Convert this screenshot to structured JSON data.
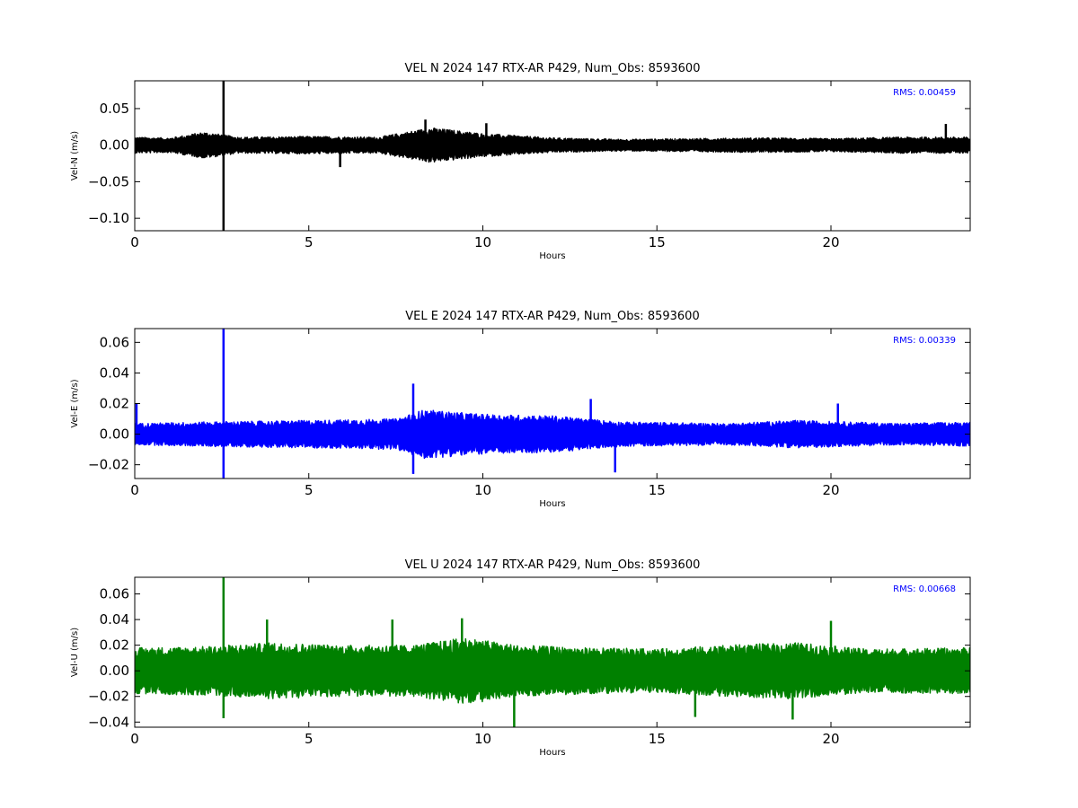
{
  "chart_data": [
    {
      "type": "line",
      "title": "VEL N 2024 147 RTX-AR  P429, Num_Obs: 8593600",
      "xlabel": "Hours",
      "ylabel": "Vel-N (m/s)",
      "xlim": [
        0,
        24
      ],
      "ylim": [
        -0.117,
        0.088
      ],
      "xticks": [
        "0",
        "5",
        "10",
        "15",
        "20"
      ],
      "yticks": [
        "0.05",
        "0.00",
        "−0.05",
        "−0.10"
      ],
      "ytick_values": [
        0.05,
        0.0,
        -0.05,
        -0.1
      ],
      "rms_label": "RMS:  0.00459",
      "rms_color": "#0000ff",
      "series": [
        {
          "color": "#000000",
          "noise_envelope": [
            {
              "x": 0,
              "amp": 0.011
            },
            {
              "x": 1,
              "amp": 0.01
            },
            {
              "x": 2,
              "amp": 0.018
            },
            {
              "x": 3,
              "amp": 0.011
            },
            {
              "x": 5,
              "amp": 0.012
            },
            {
              "x": 7,
              "amp": 0.011
            },
            {
              "x": 8.5,
              "amp": 0.024
            },
            {
              "x": 10,
              "amp": 0.016
            },
            {
              "x": 12,
              "amp": 0.01
            },
            {
              "x": 14,
              "amp": 0.008
            },
            {
              "x": 16,
              "amp": 0.009
            },
            {
              "x": 18,
              "amp": 0.01
            },
            {
              "x": 20,
              "amp": 0.009
            },
            {
              "x": 22,
              "amp": 0.011
            },
            {
              "x": 24,
              "amp": 0.011
            }
          ],
          "spikes": [
            {
              "x": 2.55,
              "y": 0.088
            },
            {
              "x": 2.55,
              "y": -0.117
            },
            {
              "x": 5.9,
              "y": -0.03
            },
            {
              "x": 8.35,
              "y": 0.035
            },
            {
              "x": 10.1,
              "y": 0.03
            },
            {
              "x": 23.3,
              "y": 0.029
            }
          ]
        }
      ]
    },
    {
      "type": "line",
      "title": "VEL E 2024 147 RTX-AR  P429, Num_Obs: 8593600",
      "xlabel": "Hours",
      "ylabel": "Vel-E (m/s)",
      "xlim": [
        0,
        24
      ],
      "ylim": [
        -0.029,
        0.069
      ],
      "xticks": [
        "0",
        "5",
        "10",
        "15",
        "20"
      ],
      "yticks": [
        "0.06",
        "0.04",
        "0.02",
        "0.00",
        "−0.02"
      ],
      "ytick_values": [
        0.06,
        0.04,
        0.02,
        0.0,
        -0.02
      ],
      "rms_label": "RMS:  0.00339",
      "rms_color": "#0000ff",
      "series": [
        {
          "color": "#0000ff",
          "noise_envelope": [
            {
              "x": 0,
              "amp": 0.007
            },
            {
              "x": 2,
              "amp": 0.008
            },
            {
              "x": 5,
              "amp": 0.009
            },
            {
              "x": 7.5,
              "amp": 0.01
            },
            {
              "x": 8.3,
              "amp": 0.016
            },
            {
              "x": 10,
              "amp": 0.013
            },
            {
              "x": 12,
              "amp": 0.012
            },
            {
              "x": 14,
              "amp": 0.008
            },
            {
              "x": 17,
              "amp": 0.007
            },
            {
              "x": 19,
              "amp": 0.009
            },
            {
              "x": 22,
              "amp": 0.007
            },
            {
              "x": 24,
              "amp": 0.008
            }
          ],
          "spikes": [
            {
              "x": 0.05,
              "y": 0.02
            },
            {
              "x": 2.55,
              "y": 0.069
            },
            {
              "x": 2.55,
              "y": -0.029
            },
            {
              "x": 8.0,
              "y": 0.033
            },
            {
              "x": 8.0,
              "y": -0.026
            },
            {
              "x": 13.8,
              "y": -0.025
            },
            {
              "x": 13.1,
              "y": 0.023
            },
            {
              "x": 20.2,
              "y": 0.02
            }
          ]
        }
      ]
    },
    {
      "type": "line",
      "title": "VEL U 2024 147 RTX-AR  P429, Num_Obs: 8593600",
      "xlabel": "Hours",
      "ylabel": "Vel-U (m/s)",
      "xlim": [
        0,
        24
      ],
      "ylim": [
        -0.044,
        0.073
      ],
      "xticks": [
        "0",
        "5",
        "10",
        "15",
        "20"
      ],
      "yticks": [
        "0.06",
        "0.04",
        "0.02",
        "0.00",
        "−0.02",
        "−0.04"
      ],
      "ytick_values": [
        0.06,
        0.04,
        0.02,
        0.0,
        -0.02,
        -0.04
      ],
      "rms_label": "RMS:  0.00668",
      "rms_color": "#0000ff",
      "series": [
        {
          "color": "#008000",
          "noise_envelope": [
            {
              "x": 0,
              "amp": 0.018
            },
            {
              "x": 2,
              "amp": 0.019
            },
            {
              "x": 4,
              "amp": 0.022
            },
            {
              "x": 6,
              "amp": 0.02
            },
            {
              "x": 8,
              "amp": 0.02
            },
            {
              "x": 9.5,
              "amp": 0.026
            },
            {
              "x": 11,
              "amp": 0.02
            },
            {
              "x": 13,
              "amp": 0.018
            },
            {
              "x": 15,
              "amp": 0.017
            },
            {
              "x": 17,
              "amp": 0.02
            },
            {
              "x": 19,
              "amp": 0.022
            },
            {
              "x": 21,
              "amp": 0.017
            },
            {
              "x": 24,
              "amp": 0.018
            }
          ],
          "spikes": [
            {
              "x": 2.55,
              "y": 0.073
            },
            {
              "x": 2.55,
              "y": -0.037
            },
            {
              "x": 10.9,
              "y": -0.044
            },
            {
              "x": 3.8,
              "y": 0.04
            },
            {
              "x": 7.4,
              "y": 0.04
            },
            {
              "x": 9.4,
              "y": 0.041
            },
            {
              "x": 16.1,
              "y": -0.036
            },
            {
              "x": 18.9,
              "y": -0.038
            },
            {
              "x": 20.0,
              "y": 0.039
            }
          ]
        }
      ]
    }
  ]
}
